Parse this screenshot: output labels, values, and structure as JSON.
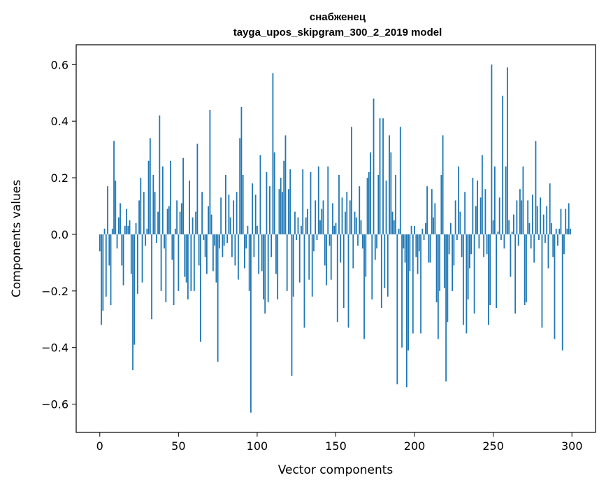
{
  "chart_data": {
    "type": "bar",
    "title": "снабженец",
    "subtitle": "tayga_upos_skipgram_300_2_2019 model",
    "xlabel": "Vector components",
    "ylabel": "Components values",
    "xlim": [
      -15,
      315
    ],
    "ylim": [
      -0.7,
      0.67
    ],
    "xticks": [
      0,
      50,
      100,
      150,
      200,
      250,
      300
    ],
    "xtick_labels": [
      "0",
      "50",
      "100",
      "150",
      "200",
      "250",
      "300"
    ],
    "yticks": [
      -0.6,
      -0.4,
      -0.2,
      0.0,
      0.2,
      0.4,
      0.6
    ],
    "ytick_labels": [
      "−0.6",
      "−0.4",
      "−0.2",
      "0.0",
      "0.2",
      "0.4",
      "0.6"
    ],
    "grid": false,
    "bar_color": "#1f77b4",
    "x": "0..299",
    "values": [
      -0.06,
      -0.32,
      -0.27,
      0.02,
      -0.22,
      0.17,
      -0.11,
      -0.25,
      0.02,
      0.33,
      0.19,
      -0.05,
      0.06,
      0.11,
      -0.11,
      -0.18,
      0.03,
      0.09,
      0.03,
      0.05,
      -0.14,
      -0.48,
      -0.39,
      0.04,
      -0.21,
      0.12,
      0.2,
      -0.17,
      0.15,
      -0.04,
      0.02,
      0.26,
      0.34,
      -0.3,
      0.21,
      0.15,
      -0.03,
      0.08,
      0.42,
      -0.2,
      0.24,
      -0.05,
      -0.24,
      0.09,
      0.1,
      0.26,
      -0.09,
      -0.25,
      0.02,
      0.12,
      -0.2,
      0.08,
      0.11,
      0.27,
      -0.15,
      -0.17,
      -0.23,
      0.19,
      -0.2,
      0.06,
      -0.2,
      0.08,
      0.32,
      -0.11,
      -0.38,
      0.15,
      -0.02,
      -0.08,
      -0.14,
      0.1,
      0.44,
      0.07,
      -0.13,
      -0.04,
      -0.17,
      -0.45,
      -0.05,
      0.13,
      -0.08,
      -0.04,
      0.21,
      -0.03,
      0.14,
      0.06,
      -0.08,
      0.12,
      -0.11,
      0.15,
      -0.16,
      0.34,
      0.45,
      0.21,
      -0.12,
      -0.05,
      0.03,
      -0.2,
      -0.63,
      0.18,
      -0.08,
      0.14,
      0.03,
      -0.14,
      0.28,
      -0.13,
      -0.23,
      -0.28,
      0.22,
      -0.24,
      0.17,
      -0.08,
      0.57,
      0.29,
      -0.14,
      -0.23,
      0.16,
      0.2,
      0.15,
      0.26,
      0.35,
      -0.2,
      0.16,
      0.23,
      -0.5,
      -0.22,
      0.08,
      -0.02,
      0.06,
      -0.17,
      0.03,
      0.23,
      -0.33,
      0.06,
      0.09,
      -0.16,
      0.22,
      -0.22,
      -0.06,
      0.12,
      -0.02,
      0.24,
      0.05,
      0.09,
      0.12,
      -0.11,
      -0.18,
      0.24,
      -0.04,
      -0.16,
      0.11,
      0.03,
      0.04,
      -0.31,
      0.21,
      -0.1,
      0.13,
      -0.26,
      0.08,
      0.15,
      -0.33,
      0.12,
      0.38,
      -0.12,
      0.08,
      0.06,
      -0.04,
      0.17,
      0.05,
      -0.05,
      -0.37,
      -0.15,
      0.2,
      0.22,
      0.29,
      -0.23,
      0.48,
      -0.09,
      -0.05,
      0.21,
      0.41,
      -0.26,
      0.41,
      -0.19,
      0.19,
      -0.22,
      0.35,
      0.29,
      0.08,
      0.05,
      0.21,
      -0.53,
      0.02,
      0.38,
      -0.4,
      -0.05,
      -0.1,
      -0.54,
      -0.41,
      -0.13,
      0.03,
      -0.35,
      0.03,
      -0.08,
      -0.14,
      -0.06,
      -0.35,
      0.02,
      -0.02,
      0.04,
      0.17,
      -0.1,
      -0.1,
      0.16,
      0.06,
      0.11,
      -0.24,
      -0.37,
      -0.2,
      0.21,
      0.35,
      -0.19,
      -0.52,
      -0.31,
      -0.07,
      0.04,
      -0.2,
      -0.11,
      0.12,
      -0.02,
      0.24,
      0.08,
      -0.08,
      -0.32,
      0.15,
      -0.35,
      -0.23,
      -0.12,
      -0.07,
      0.2,
      -0.28,
      0.1,
      0.19,
      -0.05,
      0.13,
      0.28,
      -0.08,
      0.16,
      -0.07,
      -0.32,
      -0.25,
      0.6,
      0.05,
      0.24,
      -0.26,
      0.01,
      0.13,
      -0.02,
      0.49,
      -0.05,
      0.24,
      0.59,
      0.05,
      -0.15,
      0.01,
      0.07,
      -0.28,
      0.12,
      -0.04,
      0.16,
      0.12,
      0.24,
      -0.25,
      -0.24,
      0.12,
      0.04,
      -0.05,
      0.14,
      -0.1,
      0.33,
      0.1,
      -0.02,
      0.13,
      -0.33,
      0.07,
      -0.03,
      0.1,
      -0.12,
      0.18,
      0.04,
      -0.08,
      -0.37,
      0.02,
      -0.04,
      0.02,
      0.09,
      -0.41,
      -0.07,
      0.09,
      0.02,
      0.11,
      0.02
    ]
  }
}
